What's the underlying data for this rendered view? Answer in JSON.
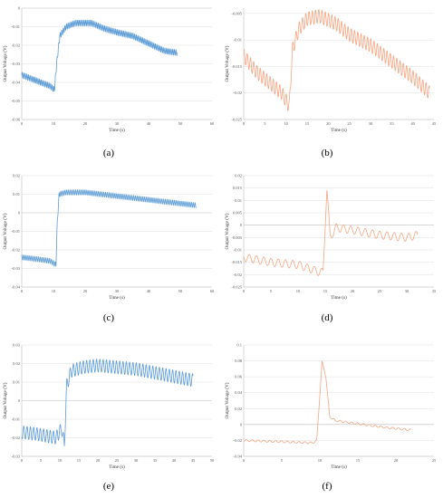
{
  "chart_data": [
    {
      "type": "line",
      "label": "(a)",
      "color": "#5b9bd5",
      "xlabel": "Time (s)",
      "ylabel": "Output Voltage (V)",
      "xlim": [
        0,
        60
      ],
      "ylim": [
        -0.06,
        0
      ],
      "xticks": [
        "0",
        "10",
        "20",
        "30",
        "40",
        "50",
        "60"
      ],
      "yticks": [
        "0",
        "-0.01",
        "-0.02",
        "-0.03",
        "-0.04",
        "-0.05",
        "-0.06"
      ],
      "x_max": 49,
      "keypoints": [
        [
          0,
          -0.036
        ],
        [
          3,
          -0.038
        ],
        [
          6,
          -0.04
        ],
        [
          9,
          -0.042
        ],
        [
          10.3,
          -0.044
        ],
        [
          11,
          -0.03
        ],
        [
          12,
          -0.015
        ],
        [
          14,
          -0.01
        ],
        [
          17,
          -0.008
        ],
        [
          22,
          -0.008
        ],
        [
          26,
          -0.011
        ],
        [
          30,
          -0.013
        ],
        [
          35,
          -0.015
        ],
        [
          40,
          -0.019
        ],
        [
          45,
          -0.023
        ],
        [
          49,
          -0.024
        ]
      ],
      "wiggle": {
        "amp": 0.0016,
        "freq": 2.0
      }
    },
    {
      "type": "line",
      "label": "(b)",
      "color": "#f4a582",
      "xlabel": "Time (s)",
      "ylabel": "Output Voltage (V)",
      "xlim": [
        0,
        45
      ],
      "ylim": [
        -0.025,
        -0.004
      ],
      "xticks": [
        "0",
        "5",
        "10",
        "15",
        "20",
        "25",
        "30",
        "35",
        "40",
        "45"
      ],
      "yticks": [
        "-0.005",
        "-0.01",
        "-0.015",
        "-0.02",
        "-0.025"
      ],
      "x_max": 44,
      "keypoints": [
        [
          0,
          -0.013
        ],
        [
          3,
          -0.016
        ],
        [
          6,
          -0.018
        ],
        [
          9,
          -0.02
        ],
        [
          10.8,
          -0.0225
        ],
        [
          11.5,
          -0.012
        ],
        [
          13,
          -0.008
        ],
        [
          15,
          -0.006
        ],
        [
          18,
          -0.0055
        ],
        [
          22,
          -0.007
        ],
        [
          25,
          -0.009
        ],
        [
          30,
          -0.011
        ],
        [
          35,
          -0.014
        ],
        [
          40,
          -0.017
        ],
        [
          44,
          -0.02
        ]
      ],
      "wiggle": {
        "amp": 0.0013,
        "freq": 1.3
      }
    },
    {
      "type": "line",
      "label": "(c)",
      "color": "#5b9bd5",
      "xlabel": "Time (s)",
      "ylabel": "Output Voltage (V)",
      "xlim": [
        0,
        60
      ],
      "ylim": [
        -0.04,
        0.02
      ],
      "xticks": [
        "0",
        "10",
        "20",
        "30",
        "40",
        "50",
        "60"
      ],
      "yticks": [
        "0.02",
        "0.01",
        "0",
        "-0.01",
        "-0.02",
        "-0.03",
        "-0.04"
      ],
      "x_max": 55,
      "keypoints": [
        [
          0,
          -0.024
        ],
        [
          5,
          -0.025
        ],
        [
          9,
          -0.026
        ],
        [
          10.8,
          -0.028
        ],
        [
          11.2,
          -0.005
        ],
        [
          11.8,
          0.01
        ],
        [
          14,
          0.011
        ],
        [
          20,
          0.011
        ],
        [
          30,
          0.009
        ],
        [
          40,
          0.007
        ],
        [
          50,
          0.005
        ],
        [
          55,
          0.004
        ]
      ],
      "wiggle": {
        "amp": 0.0014,
        "freq": 1.7
      }
    },
    {
      "type": "line",
      "label": "(d)",
      "color": "#f4a582",
      "xlabel": "Time (s)",
      "ylabel": "Output Voltage (V)",
      "xlim": [
        0,
        35
      ],
      "ylim": [
        -0.025,
        0.02
      ],
      "xticks": [
        "0",
        "5",
        "10",
        "15",
        "20",
        "25",
        "30",
        "35"
      ],
      "yticks": [
        "0.02",
        "0.015",
        "0.01",
        "0.005",
        "0",
        "-0.005",
        "-0.01",
        "-0.015",
        "-0.02",
        "-0.025"
      ],
      "x_max": 32,
      "keypoints": [
        [
          0,
          -0.013
        ],
        [
          5,
          -0.015
        ],
        [
          10,
          -0.016
        ],
        [
          14,
          -0.019
        ],
        [
          14.6,
          -0.019
        ],
        [
          15.3,
          0.015
        ],
        [
          15.9,
          -0.005
        ],
        [
          17,
          -0.001
        ],
        [
          20,
          -0.002
        ],
        [
          25,
          -0.004
        ],
        [
          30,
          -0.005
        ],
        [
          32,
          -0.004
        ]
      ],
      "wiggle": {
        "amp": 0.0016,
        "freq": 0.75
      }
    },
    {
      "type": "line",
      "label": "(e)",
      "color": "#5b9bd5",
      "xlabel": "Time (s)",
      "ylabel": "Output Voltage (V)",
      "xlim": [
        0,
        50
      ],
      "ylim": [
        -0.03,
        0.03
      ],
      "xticks": [
        "0",
        "5",
        "10",
        "15",
        "20",
        "25",
        "30",
        "35",
        "40",
        "45",
        "50"
      ],
      "yticks": [
        "0.03",
        "0.02",
        "0.01",
        "0",
        "-0.01",
        "-0.02",
        "-0.03"
      ],
      "x_max": 45,
      "keypoints": [
        [
          0,
          -0.017
        ],
        [
          4,
          -0.018
        ],
        [
          9,
          -0.02
        ],
        [
          10.5,
          -0.015
        ],
        [
          11.2,
          -0.024
        ],
        [
          11.8,
          0.008
        ],
        [
          13,
          0.016
        ],
        [
          16,
          0.018
        ],
        [
          20,
          0.019
        ],
        [
          25,
          0.018
        ],
        [
          30,
          0.017
        ],
        [
          35,
          0.015
        ],
        [
          40,
          0.013
        ],
        [
          45,
          0.011
        ]
      ],
      "wiggle": {
        "amp": 0.0035,
        "freq": 1.15
      }
    },
    {
      "type": "line",
      "label": "(f)",
      "color": "#f4a582",
      "xlabel": "Time (s)",
      "ylabel": "Output Voltage (V)",
      "xlim": [
        0,
        25
      ],
      "ylim": [
        -0.04,
        0.1
      ],
      "xticks": [
        "0",
        "5",
        "10",
        "15",
        "20",
        "25"
      ],
      "yticks": [
        "0.1",
        "0.08",
        "0.06",
        "0.04",
        "0.02",
        "0",
        "-0.02",
        "-0.04"
      ],
      "x_max": 22,
      "keypoints": [
        [
          0,
          -0.02
        ],
        [
          3,
          -0.021
        ],
        [
          6,
          -0.022
        ],
        [
          9,
          -0.023
        ],
        [
          9.6,
          -0.02
        ],
        [
          10.3,
          0.079
        ],
        [
          10.8,
          0.06
        ],
        [
          11.3,
          0.01
        ],
        [
          12,
          0.005
        ],
        [
          15,
          0.001
        ],
        [
          18,
          -0.003
        ],
        [
          22,
          -0.007
        ]
      ],
      "wiggle": {
        "amp": 0.0012,
        "freq": 1.3
      }
    }
  ]
}
